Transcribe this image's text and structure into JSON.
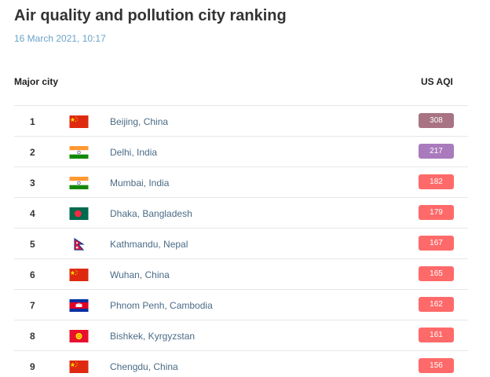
{
  "header": {
    "title": "Air quality and pollution city ranking",
    "timestamp": "16 March 2021, 10:17"
  },
  "columns": {
    "city": "Major city",
    "aqi": "US AQI"
  },
  "rows": [
    {
      "rank": "1",
      "city": "Beijing, China",
      "aqi": "308",
      "flag": "china-flag-icon",
      "aqi_color": "#a87383"
    },
    {
      "rank": "2",
      "city": "Delhi, India",
      "aqi": "217",
      "flag": "india-flag-icon",
      "aqi_color": "#a97abc"
    },
    {
      "rank": "3",
      "city": "Mumbai, India",
      "aqi": "182",
      "flag": "india-flag-icon",
      "aqi_color": "#fe6a69"
    },
    {
      "rank": "4",
      "city": "Dhaka, Bangladesh",
      "aqi": "179",
      "flag": "bangladesh-flag-icon",
      "aqi_color": "#fe6a69"
    },
    {
      "rank": "5",
      "city": "Kathmandu, Nepal",
      "aqi": "167",
      "flag": "nepal-flag-icon",
      "aqi_color": "#fe6a69"
    },
    {
      "rank": "6",
      "city": "Wuhan, China",
      "aqi": "165",
      "flag": "china-flag-icon",
      "aqi_color": "#fe6a69"
    },
    {
      "rank": "7",
      "city": "Phnom Penh, Cambodia",
      "aqi": "162",
      "flag": "cambodia-flag-icon",
      "aqi_color": "#fe6a69"
    },
    {
      "rank": "8",
      "city": "Bishkek, Kyrgyzstan",
      "aqi": "161",
      "flag": "kyrgyzstan-flag-icon",
      "aqi_color": "#fe6a69"
    },
    {
      "rank": "9",
      "city": "Chengdu, China",
      "aqi": "156",
      "flag": "china-flag-icon",
      "aqi_color": "#fe6a69"
    }
  ]
}
